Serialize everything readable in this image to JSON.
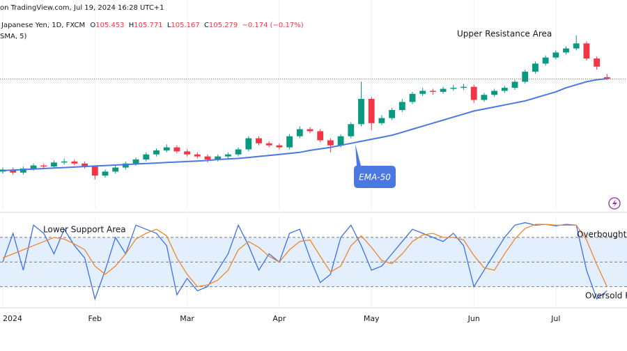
{
  "header": {
    "source": "on TradingView.com, Jul 19, 2024 16:28 UTC+1",
    "symbol": "Japanese Yen, 1D, FXCM",
    "ohlc_prefixes": [
      "O",
      "H",
      "L",
      "C"
    ],
    "change": "−0.174 (−0.17%)",
    "indicator": "SMA, 5)"
  },
  "chart_data": [
    {
      "type": "candlestick",
      "up_color": "#089981",
      "down_color": "#f23645",
      "xlim": [
        -0.27,
        60.95
      ],
      "ylim": [
        92.4,
        113.1
      ],
      "last_price_line": true,
      "last_price_color": "#f23645",
      "annotations": [
        "Upper Resistance Area"
      ],
      "open": [
        96.1,
        96.3,
        96.0,
        96.4,
        96.7,
        96.6,
        97.0,
        97.1,
        96.9,
        96.6,
        95.7,
        96.1,
        96.5,
        96.9,
        97.3,
        97.8,
        98.2,
        98.5,
        98.1,
        97.8,
        97.6,
        97.3,
        97.6,
        97.8,
        98.3,
        99.4,
        98.9,
        98.7,
        98.5,
        99.6,
        100.3,
        100.1,
        99.2,
        98.7,
        99.6,
        100.8,
        103.3,
        100.9,
        101.4,
        102.2,
        103.0,
        103.8,
        104.1,
        104.0,
        104.3,
        104.4,
        104.5,
        103.2,
        103.7,
        104.1,
        104.4,
        105.0,
        106.0,
        106.8,
        107.4,
        107.9,
        108.3,
        108.8,
        107.3,
        105.453
      ],
      "high": [
        96.5,
        96.5,
        96.6,
        96.9,
        96.9,
        97.2,
        97.4,
        97.3,
        97.1,
        96.7,
        96.3,
        96.7,
        97.1,
        97.5,
        98.0,
        98.4,
        98.8,
        98.7,
        98.3,
        98.0,
        97.8,
        97.8,
        98.0,
        98.5,
        99.6,
        99.6,
        99.1,
        98.9,
        99.8,
        100.6,
        100.5,
        100.3,
        99.4,
        99.8,
        101.0,
        105.0,
        103.5,
        101.7,
        102.4,
        103.3,
        104.0,
        104.4,
        104.3,
        104.5,
        104.7,
        104.8,
        104.7,
        103.9,
        104.3,
        104.6,
        105.2,
        106.2,
        107.0,
        107.6,
        108.1,
        108.5,
        109.6,
        109.0,
        107.5,
        105.771
      ],
      "low": [
        95.9,
        95.8,
        95.8,
        96.2,
        96.4,
        96.4,
        96.8,
        96.7,
        96.4,
        95.3,
        95.5,
        95.9,
        96.3,
        96.7,
        97.1,
        97.6,
        98.0,
        97.9,
        97.6,
        97.4,
        97.0,
        97.1,
        97.4,
        97.6,
        98.1,
        98.7,
        98.5,
        98.3,
        98.3,
        99.4,
        99.9,
        99.0,
        98.0,
        98.5,
        99.4,
        100.6,
        100.2,
        100.7,
        101.2,
        102.0,
        102.8,
        103.6,
        103.7,
        103.8,
        104.1,
        104.2,
        102.9,
        103.0,
        103.5,
        103.9,
        104.2,
        104.8,
        105.8,
        106.6,
        107.2,
        107.7,
        108.1,
        107.1,
        106.2,
        105.167
      ],
      "close": [
        96.3,
        96.0,
        96.4,
        96.7,
        96.6,
        97.0,
        97.1,
        96.9,
        96.6,
        95.7,
        96.1,
        96.5,
        96.9,
        97.3,
        97.8,
        98.2,
        98.5,
        98.1,
        97.8,
        97.6,
        97.3,
        97.6,
        97.8,
        98.3,
        99.4,
        98.9,
        98.7,
        98.5,
        99.6,
        100.3,
        100.1,
        99.2,
        98.7,
        99.6,
        100.8,
        103.3,
        100.9,
        101.4,
        102.2,
        103.0,
        103.8,
        104.1,
        104.0,
        104.3,
        104.4,
        104.5,
        103.2,
        103.7,
        104.1,
        104.4,
        105.0,
        106.0,
        106.8,
        107.4,
        107.9,
        108.3,
        108.8,
        107.3,
        106.5,
        105.279
      ],
      "series": [
        {
          "name": "EMA-50",
          "color": "#4a78e0",
          "values": [
            96.2,
            96.25,
            96.3,
            96.35,
            96.4,
            96.45,
            96.5,
            96.55,
            96.6,
            96.65,
            96.7,
            96.75,
            96.8,
            96.85,
            96.9,
            96.95,
            97.0,
            97.05,
            97.1,
            97.15,
            97.2,
            97.3,
            97.35,
            97.4,
            97.5,
            97.6,
            97.7,
            97.8,
            97.9,
            98.0,
            98.2,
            98.35,
            98.5,
            98.7,
            98.9,
            99.1,
            99.3,
            99.5,
            99.7,
            100.0,
            100.3,
            100.6,
            100.9,
            101.2,
            101.5,
            101.8,
            102.1,
            102.3,
            102.5,
            102.7,
            102.9,
            103.1,
            103.4,
            103.7,
            104.0,
            104.4,
            104.7,
            105.0,
            105.2,
            105.3
          ]
        }
      ]
    },
    {
      "type": "line",
      "xlim": [
        -0.27,
        60.95
      ],
      "ylim": [
        -5,
        105
      ],
      "levels": [
        80,
        50,
        20
      ],
      "band_color": "#e3effd",
      "level_color": "#787b86",
      "grid": true,
      "annotations": [
        "Lower Support Area",
        "Overbought R",
        "Oversold R"
      ],
      "xticks": [
        {
          "value": 0,
          "label": "2024"
        },
        {
          "value": 9,
          "label": "Feb"
        },
        {
          "value": 18,
          "label": "Mar"
        },
        {
          "value": 27,
          "label": "Apr"
        },
        {
          "value": 36,
          "label": "May"
        },
        {
          "value": 46,
          "label": "Jun"
        },
        {
          "value": 54,
          "label": "Jul"
        }
      ],
      "series": [
        {
          "color": "#3d6ff0",
          "values": [
            50,
            85,
            40,
            95,
            85,
            60,
            90,
            70,
            55,
            5,
            40,
            80,
            60,
            95,
            90,
            85,
            70,
            10,
            30,
            15,
            20,
            40,
            60,
            95,
            70,
            40,
            60,
            50,
            85,
            90,
            55,
            25,
            35,
            80,
            95,
            70,
            40,
            45,
            60,
            75,
            90,
            85,
            80,
            75,
            85,
            70,
            20,
            40,
            60,
            80,
            95,
            98,
            95,
            96,
            94,
            96,
            95,
            40,
            5,
            15
          ]
        },
        {
          "color": "#f0862a",
          "values": [
            55,
            60,
            65,
            70,
            75,
            80,
            78,
            72,
            65,
            45,
            35,
            45,
            60,
            78,
            85,
            90,
            82,
            55,
            35,
            20,
            22,
            28,
            40,
            65,
            75,
            68,
            57,
            50,
            65,
            75,
            77,
            57,
            38,
            45,
            70,
            82,
            68,
            52,
            48,
            60,
            75,
            83,
            85,
            80,
            80,
            77,
            58,
            43,
            40,
            60,
            78,
            91,
            96,
            96,
            95,
            95,
            95,
            77,
            47,
            20
          ]
        }
      ]
    }
  ]
}
